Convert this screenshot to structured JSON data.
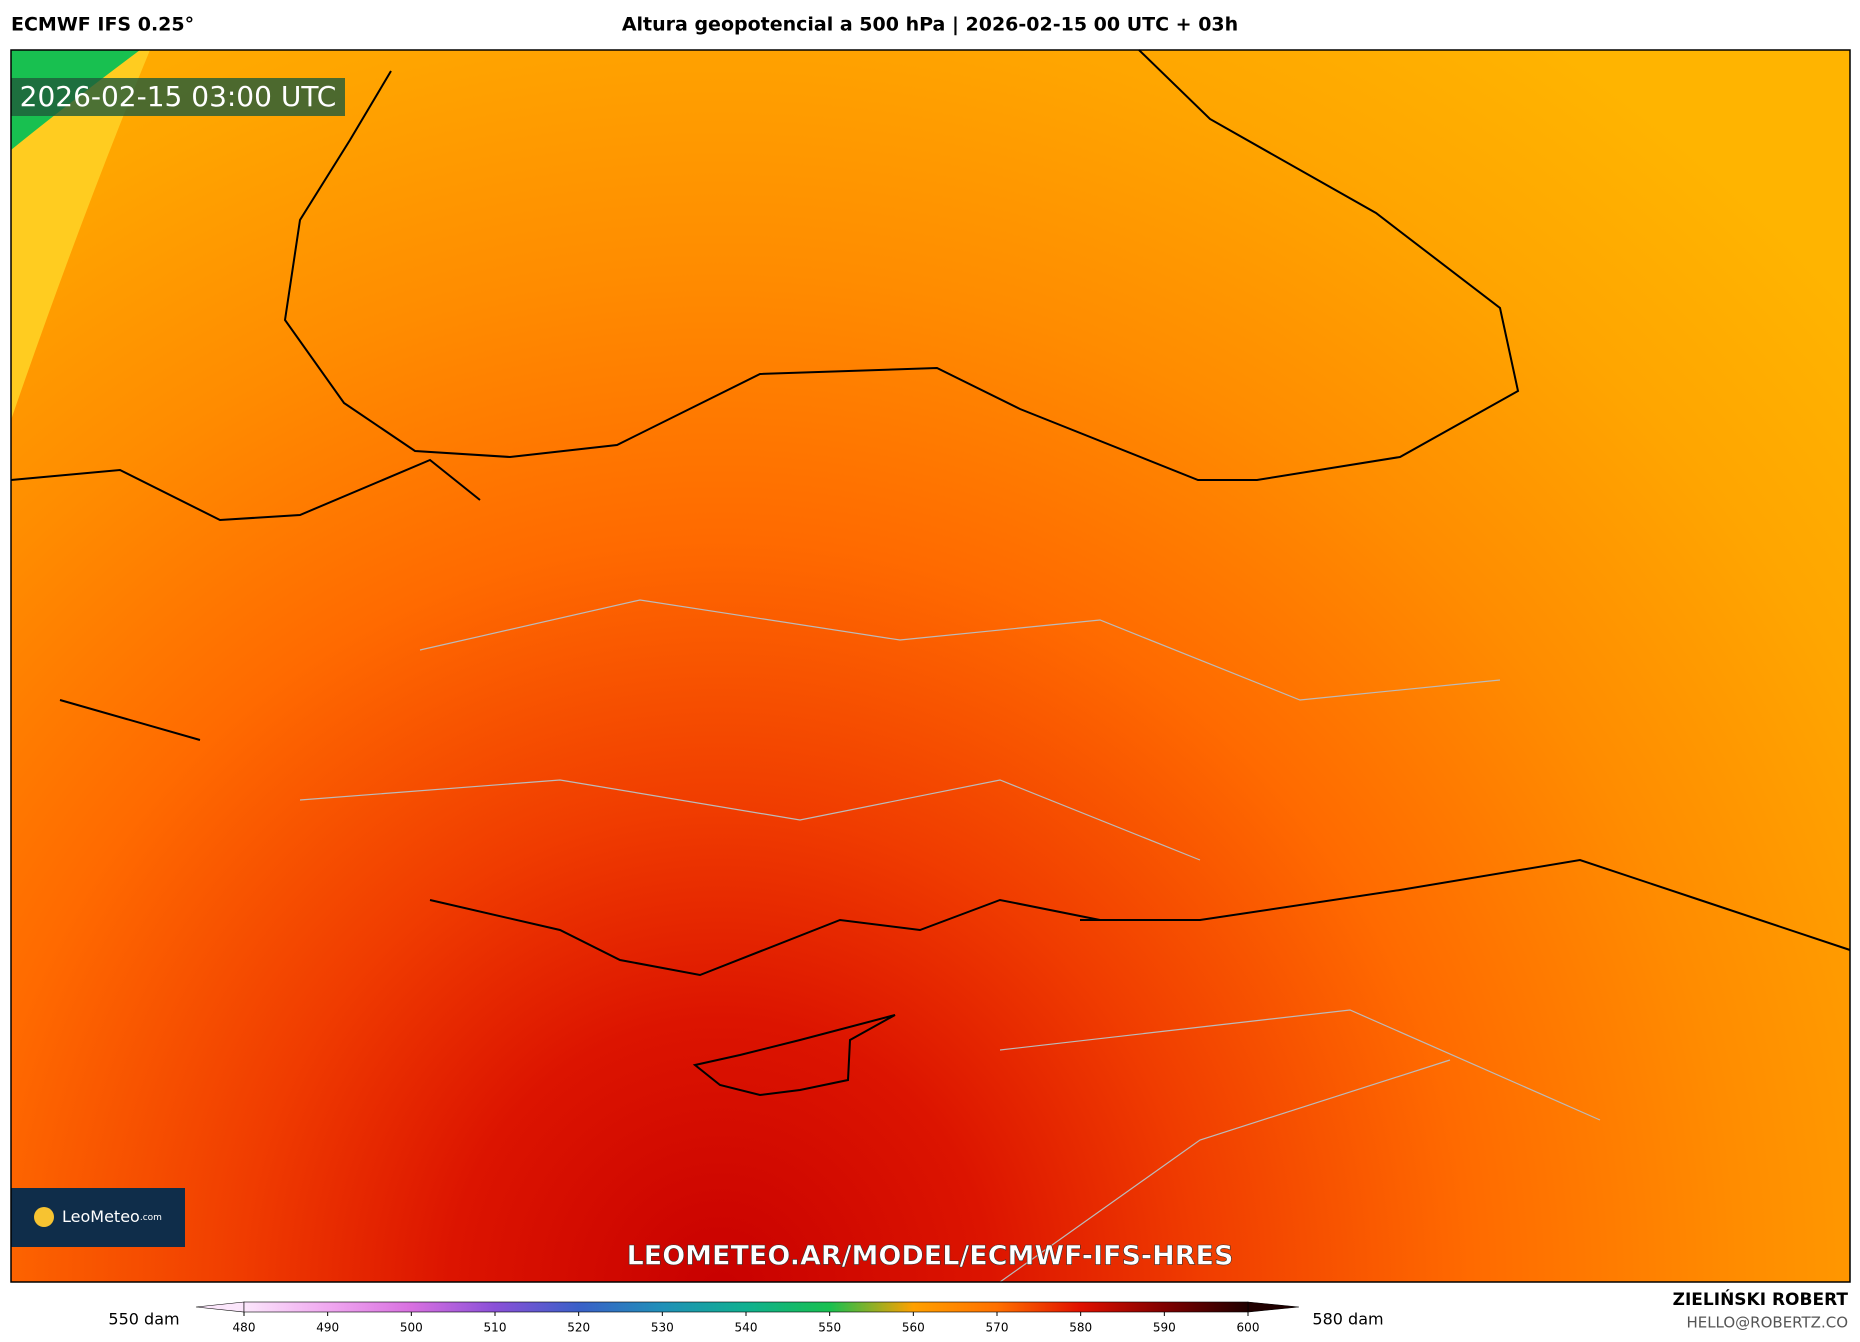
{
  "header": {
    "model": "ECMWF IFS 0.25°",
    "title": "Altura geopotencial a 500 hPa | 2026-02-15 00 UTC + 03h"
  },
  "map": {
    "valid_time": "2026-02-15 03:00 UTC",
    "watermark": "LEOMETEO.AR/MODEL/ECMWF-IFS-HRES",
    "logo": "LeoMeteo",
    "logo_suffix": ".com"
  },
  "colorbar": {
    "ticks": [
      480,
      490,
      500,
      510,
      520,
      530,
      540,
      550,
      560,
      570,
      580,
      590,
      600
    ],
    "colors": [
      "#fbe6fb",
      "#f0a8f0",
      "#d870e0",
      "#8a50d8",
      "#3a60c8",
      "#2090b8",
      "#10b090",
      "#18c050",
      "#ffa000",
      "#ff7000",
      "#e01000",
      "#800000",
      "#200000"
    ],
    "left_label": "550 dam",
    "right_label": "580 dam"
  },
  "footer": {
    "author": "ZIELIŃSKI ROBERT",
    "email": "HELLO@ROBERTZ.CO"
  }
}
